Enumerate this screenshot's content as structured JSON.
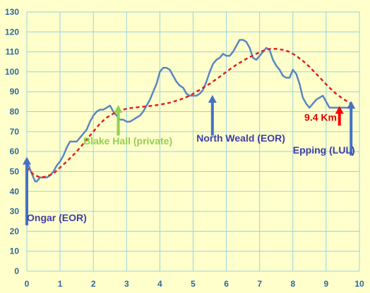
{
  "chart_data": {
    "type": "line",
    "xlim": [
      0,
      10
    ],
    "ylim": [
      0,
      130
    ],
    "x_ticks": [
      "0",
      "1",
      "2",
      "3",
      "4",
      "5",
      "6",
      "7",
      "8",
      "9",
      "10"
    ],
    "y_ticks": [
      "0",
      "10",
      "20",
      "30",
      "40",
      "50",
      "60",
      "70",
      "80",
      "90",
      "100",
      "110",
      "120",
      "130"
    ],
    "grid": true,
    "colors": {
      "background": "#ffffcc",
      "grid": "#9ad3de",
      "tick_label": "#2b6a9b",
      "elevation": "#5a86c0",
      "trend": "#e02020",
      "arrow_blue": "#4472c4",
      "arrow_green": "#92d050",
      "arrow_red": "#ff0000",
      "label_blue": "#3b3fa8",
      "label_green": "#92d050",
      "label_red": "#e00000"
    },
    "series": [
      {
        "name": "",
        "style": "solid",
        "x": [
          0,
          0.1,
          0.2,
          0.25,
          0.3,
          0.4,
          0.5,
          0.6,
          0.7,
          0.8,
          0.9,
          1.0,
          1.1,
          1.2,
          1.3,
          1.4,
          1.5,
          1.6,
          1.7,
          1.8,
          1.9,
          2.0,
          2.1,
          2.2,
          2.3,
          2.4,
          2.5,
          2.6,
          2.7,
          2.75,
          2.8,
          2.9,
          3.0,
          3.1,
          3.2,
          3.3,
          3.4,
          3.5,
          3.6,
          3.7,
          3.8,
          3.9,
          4.0,
          4.1,
          4.2,
          4.3,
          4.4,
          4.5,
          4.6,
          4.7,
          4.8,
          4.9,
          5.0,
          5.1,
          5.2,
          5.3,
          5.4,
          5.5,
          5.6,
          5.7,
          5.8,
          5.9,
          6.0,
          6.1,
          6.2,
          6.3,
          6.4,
          6.5,
          6.6,
          6.7,
          6.8,
          6.9,
          7.0,
          7.1,
          7.2,
          7.3,
          7.4,
          7.5,
          7.6,
          7.7,
          7.8,
          7.9,
          8.0,
          8.1,
          8.2,
          8.3,
          8.4,
          8.5,
          8.6,
          8.7,
          8.8,
          8.9,
          9.0,
          9.1,
          9.2,
          9.3,
          9.4,
          9.5,
          9.6,
          9.7,
          9.75,
          9.8
        ],
        "y": [
          56,
          51,
          47,
          45,
          45,
          47,
          47,
          47,
          48,
          50,
          53,
          55,
          58,
          62,
          65,
          65,
          65,
          67,
          69,
          71,
          75,
          78,
          80,
          81,
          81,
          82,
          83,
          80,
          78,
          77,
          76,
          76,
          75,
          75,
          76,
          77,
          78,
          80,
          83,
          86,
          90,
          94,
          100,
          102,
          102,
          101,
          98,
          95,
          93,
          92,
          89,
          88,
          88,
          88,
          89,
          91,
          95,
          100,
          104,
          106,
          107,
          109,
          108,
          108,
          110,
          113,
          116,
          116,
          115,
          112,
          107,
          106,
          108,
          110,
          112,
          111,
          106,
          103,
          101,
          98,
          97,
          97,
          101,
          99,
          94,
          87,
          84,
          82,
          84,
          86,
          87,
          88,
          85,
          82,
          82,
          82,
          82,
          82,
          82,
          82,
          82,
          82
        ]
      },
      {
        "name": "",
        "style": "dashed",
        "x": [
          0,
          0.2,
          0.4,
          0.6,
          0.8,
          1.0,
          1.2,
          1.5,
          1.8,
          2.0,
          2.2,
          2.4,
          2.6,
          2.8,
          3.0,
          3.2,
          3.5,
          3.8,
          4.0,
          4.3,
          4.6,
          4.9,
          5.2,
          5.5,
          5.8,
          6.0,
          6.3,
          6.6,
          6.9,
          7.1,
          7.3,
          7.5,
          7.7,
          7.9,
          8.1,
          8.3,
          8.5,
          8.7,
          8.9,
          9.1,
          9.3,
          9.5,
          9.7,
          9.8
        ],
        "y": [
          52,
          48.5,
          47,
          47.5,
          49,
          52,
          55,
          60,
          66,
          70,
          74,
          77,
          79,
          80.5,
          81.5,
          82,
          82.5,
          83,
          83.5,
          84.5,
          86,
          88,
          91,
          94,
          97.5,
          100,
          103.5,
          106.5,
          109,
          110.5,
          111.5,
          111.5,
          111,
          110,
          108,
          105.5,
          102.5,
          99,
          95.5,
          92,
          89,
          86.5,
          84.5,
          83.5
        ]
      }
    ],
    "annotations": [
      {
        "text": "Ongar (EOR)",
        "arrow_x": 0,
        "arrow_from": 23,
        "arrow_to": 57,
        "text_x": 0,
        "text_y": 25,
        "color_key": "blue",
        "align": "start"
      },
      {
        "text": "Blake Hall (private)",
        "arrow_x": 2.75,
        "arrow_from": 68,
        "arrow_to": 83,
        "text_x": 1.7,
        "text_y": 63.5,
        "color_key": "green",
        "align": "start"
      },
      {
        "text": "North Weald (EOR)",
        "arrow_x": 5.58,
        "arrow_from": 68,
        "arrow_to": 88,
        "text_x": 5.1,
        "text_y": 65,
        "color_key": "blue",
        "align": "start"
      },
      {
        "text": "9.4 Km",
        "arrow_x": 9.4,
        "arrow_from": 73,
        "arrow_to": 82.5,
        "text_x": 9.32,
        "text_y": 75.5,
        "color_key": "red",
        "align": "end"
      },
      {
        "text": "Epping (LUL)",
        "arrow_x": 9.75,
        "arrow_from": 58,
        "arrow_to": 85,
        "text_x": 8.0,
        "text_y": 59,
        "color_key": "blue",
        "align": "start"
      }
    ]
  }
}
